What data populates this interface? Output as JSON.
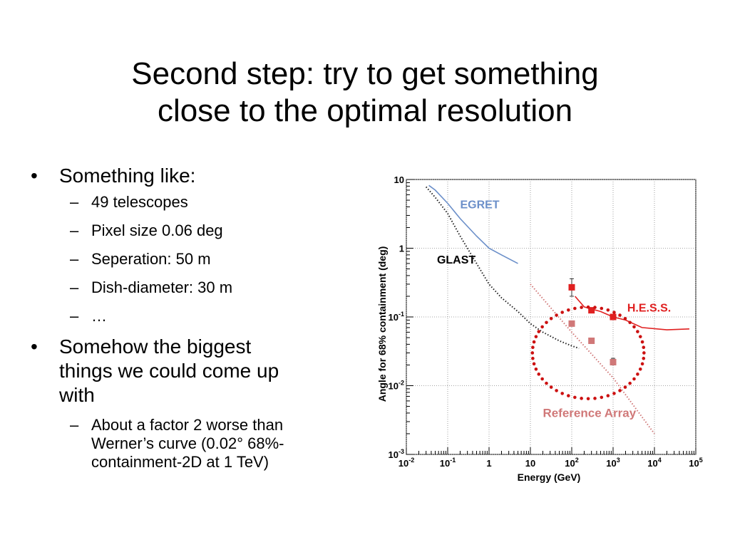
{
  "slide": {
    "title_lines": [
      "Second step: try to get something",
      "close to the optimal resolution"
    ]
  },
  "bullets": {
    "l1": "Something like:",
    "s1": "49 telescopes",
    "s2": "Pixel size 0.06 deg",
    "s3": "Seperation: 50 m",
    "s4": "Dish-diameter: 30 m",
    "s5": "…",
    "l2_lines": [
      "Somehow the biggest",
      "things we could come up",
      "with"
    ],
    "s6_lines": [
      "About a factor 2 worse than",
      "Werner’s curve (0.02° 68%-",
      "containment-2D at 1 TeV)"
    ],
    "bullet_glyph": "•",
    "dash_glyph": "–"
  },
  "chart_data": {
    "type": "scatter",
    "xscale": "log",
    "yscale": "log",
    "xlim": [
      0.01,
      100000
    ],
    "ylim": [
      0.001,
      10
    ],
    "xlabel": "Energy (GeV)",
    "ylabel": "Angle for 68% containment (deg)",
    "x_ticks": [
      {
        "v": 0.01,
        "base": "10",
        "exp": "-2"
      },
      {
        "v": 0.1,
        "base": "10",
        "exp": "-1"
      },
      {
        "v": 1,
        "base": "1",
        "exp": ""
      },
      {
        "v": 10,
        "base": "10",
        "exp": ""
      },
      {
        "v": 100,
        "base": "10",
        "exp": "2"
      },
      {
        "v": 1000,
        "base": "10",
        "exp": "3"
      },
      {
        "v": 10000,
        "base": "10",
        "exp": "4"
      },
      {
        "v": 100000,
        "base": "10",
        "exp": "5"
      }
    ],
    "y_ticks": [
      {
        "v": 10,
        "base": "10",
        "exp": ""
      },
      {
        "v": 1,
        "base": "1",
        "exp": ""
      },
      {
        "v": 0.1,
        "base": "10",
        "exp": "-1"
      },
      {
        "v": 0.01,
        "base": "10",
        "exp": "-2"
      },
      {
        "v": 0.001,
        "base": "10",
        "exp": "-3"
      }
    ],
    "grid": true,
    "series": [
      {
        "name": "EGRET",
        "style": "line",
        "color": "#6b8fc9",
        "label_at": [
          0.2,
          3.8
        ],
        "points": [
          [
            0.035,
            8.2
          ],
          [
            0.05,
            7.0
          ],
          [
            0.1,
            4.5
          ],
          [
            0.2,
            2.7
          ],
          [
            0.5,
            1.5
          ],
          [
            1,
            1.0
          ],
          [
            2,
            0.8
          ],
          [
            5,
            0.6
          ]
        ]
      },
      {
        "name": "GLAST",
        "style": "dotted",
        "color": "#222222",
        "label_at": [
          0.055,
          0.6
        ],
        "points": [
          [
            0.03,
            7.8
          ],
          [
            0.05,
            5.5
          ],
          [
            0.1,
            3.2
          ],
          [
            0.2,
            1.5
          ],
          [
            0.5,
            0.6
          ],
          [
            1,
            0.3
          ],
          [
            2,
            0.19
          ],
          [
            5,
            0.12
          ],
          [
            10,
            0.08
          ],
          [
            20,
            0.06
          ],
          [
            50,
            0.045
          ],
          [
            100,
            0.038
          ],
          [
            150,
            0.035
          ]
        ]
      },
      {
        "name": "H.E.S.S.",
        "style": "line",
        "color": "#e02020",
        "label_at": [
          2200,
          0.12
        ],
        "points": [
          [
            120,
            0.2
          ],
          [
            200,
            0.14
          ],
          [
            500,
            0.12
          ],
          [
            1000,
            0.1
          ],
          [
            2000,
            0.09
          ],
          [
            5000,
            0.07
          ],
          [
            20000,
            0.065
          ],
          [
            70000,
            0.067
          ]
        ],
        "markers": [
          {
            "x": 100,
            "y": 0.27,
            "err": [
              0.2,
              0.36
            ]
          },
          {
            "x": 300,
            "y": 0.125
          },
          {
            "x": 1000,
            "y": 0.1
          }
        ]
      },
      {
        "name": "Reference Array",
        "style": "dotted",
        "color": "#d07878",
        "label_at": [
          20,
          0.0035
        ],
        "points": [
          [
            10,
            0.3
          ],
          [
            100,
            0.06
          ],
          [
            1000,
            0.013
          ],
          [
            10000,
            0.002
          ]
        ],
        "markers": [
          {
            "x": 100,
            "y": 0.08
          },
          {
            "x": 300,
            "y": 0.045
          },
          {
            "x": 1000,
            "y": 0.022,
            "err": [
              0.02,
              0.025
            ]
          }
        ]
      }
    ],
    "highlight_ellipse": {
      "color": "#cc1111",
      "center": [
        250,
        0.03
      ],
      "x_range": [
        12,
        6000
      ],
      "y_range": [
        0.0065,
        0.14
      ]
    }
  }
}
